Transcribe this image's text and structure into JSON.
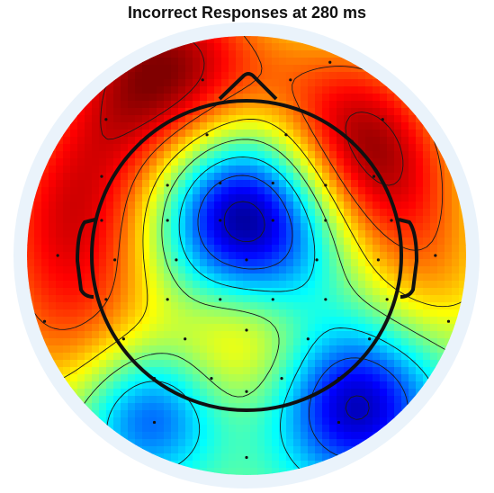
{
  "chart_data": {
    "type": "heatmap",
    "title": "Incorrect Responses at 280 ms",
    "colormap": "jet",
    "colors": {
      "background": "#ffffff",
      "outer_ring": "#eaf3fb",
      "head_outline": "#111111",
      "contour": "#1a1a1a",
      "electrode": "#111111"
    },
    "field_sources": [
      {
        "x": -0.36,
        "y": 0.82,
        "amp": 1.05,
        "width": 0.34
      },
      {
        "x": 0.45,
        "y": 0.6,
        "amp": 0.75,
        "width": 0.3
      },
      {
        "x": 0.64,
        "y": 0.3,
        "amp": 0.55,
        "width": 0.28
      },
      {
        "x": -0.76,
        "y": 0.22,
        "amp": 0.75,
        "width": 0.34
      },
      {
        "x": -0.8,
        "y": -0.35,
        "amp": 0.45,
        "width": 0.32
      },
      {
        "x": 0.84,
        "y": -0.12,
        "amp": 0.35,
        "width": 0.26
      },
      {
        "x": 0.0,
        "y": -0.36,
        "amp": 0.48,
        "width": 0.24
      },
      {
        "x": -0.04,
        "y": 0.22,
        "amp": -1.2,
        "width": 0.3
      },
      {
        "x": -0.45,
        "y": -0.72,
        "amp": -0.7,
        "width": 0.22
      },
      {
        "x": 0.5,
        "y": -0.68,
        "amp": -0.95,
        "width": 0.26
      },
      {
        "x": 0.18,
        "y": -0.02,
        "amp": -0.2,
        "width": 0.28
      }
    ],
    "contour_levels": [
      -0.9,
      -0.6,
      -0.3,
      0.0,
      0.3,
      0.6,
      0.9
    ],
    "electrodes": [
      [
        0.38,
        0.88
      ],
      [
        -0.48,
        0.52
      ],
      [
        -0.18,
        0.55
      ],
      [
        0.18,
        0.55
      ],
      [
        0.48,
        0.52
      ],
      [
        -0.66,
        0.36
      ],
      [
        -0.36,
        0.32
      ],
      [
        -0.12,
        0.33
      ],
      [
        0.12,
        0.33
      ],
      [
        0.36,
        0.32
      ],
      [
        0.58,
        0.36
      ],
      [
        -0.66,
        0.16
      ],
      [
        -0.36,
        0.16
      ],
      [
        -0.12,
        0.16
      ],
      [
        0.12,
        0.16
      ],
      [
        0.36,
        0.16
      ],
      [
        0.66,
        0.16
      ],
      [
        -0.86,
        0.0
      ],
      [
        -0.6,
        -0.02
      ],
      [
        -0.32,
        -0.02
      ],
      [
        0.0,
        -0.02
      ],
      [
        0.32,
        -0.02
      ],
      [
        0.6,
        -0.02
      ],
      [
        0.86,
        0.0
      ],
      [
        -0.64,
        -0.2
      ],
      [
        -0.36,
        -0.2
      ],
      [
        -0.12,
        -0.2
      ],
      [
        0.12,
        -0.2
      ],
      [
        0.36,
        -0.2
      ],
      [
        0.64,
        -0.2
      ],
      [
        -0.92,
        -0.3
      ],
      [
        -0.56,
        -0.38
      ],
      [
        -0.28,
        -0.38
      ],
      [
        0.0,
        -0.34
      ],
      [
        0.28,
        -0.38
      ],
      [
        0.56,
        -0.38
      ],
      [
        0.92,
        -0.3
      ],
      [
        -0.42,
        -0.56
      ],
      [
        -0.16,
        -0.56
      ],
      [
        0.0,
        -0.62
      ],
      [
        0.16,
        -0.56
      ],
      [
        0.42,
        -0.56
      ],
      [
        -0.42,
        -0.76
      ],
      [
        0.0,
        -0.92
      ],
      [
        0.42,
        -0.76
      ],
      [
        -0.64,
        0.62
      ],
      [
        0.62,
        0.62
      ],
      [
        -0.2,
        0.8
      ],
      [
        0.2,
        0.8
      ]
    ]
  }
}
